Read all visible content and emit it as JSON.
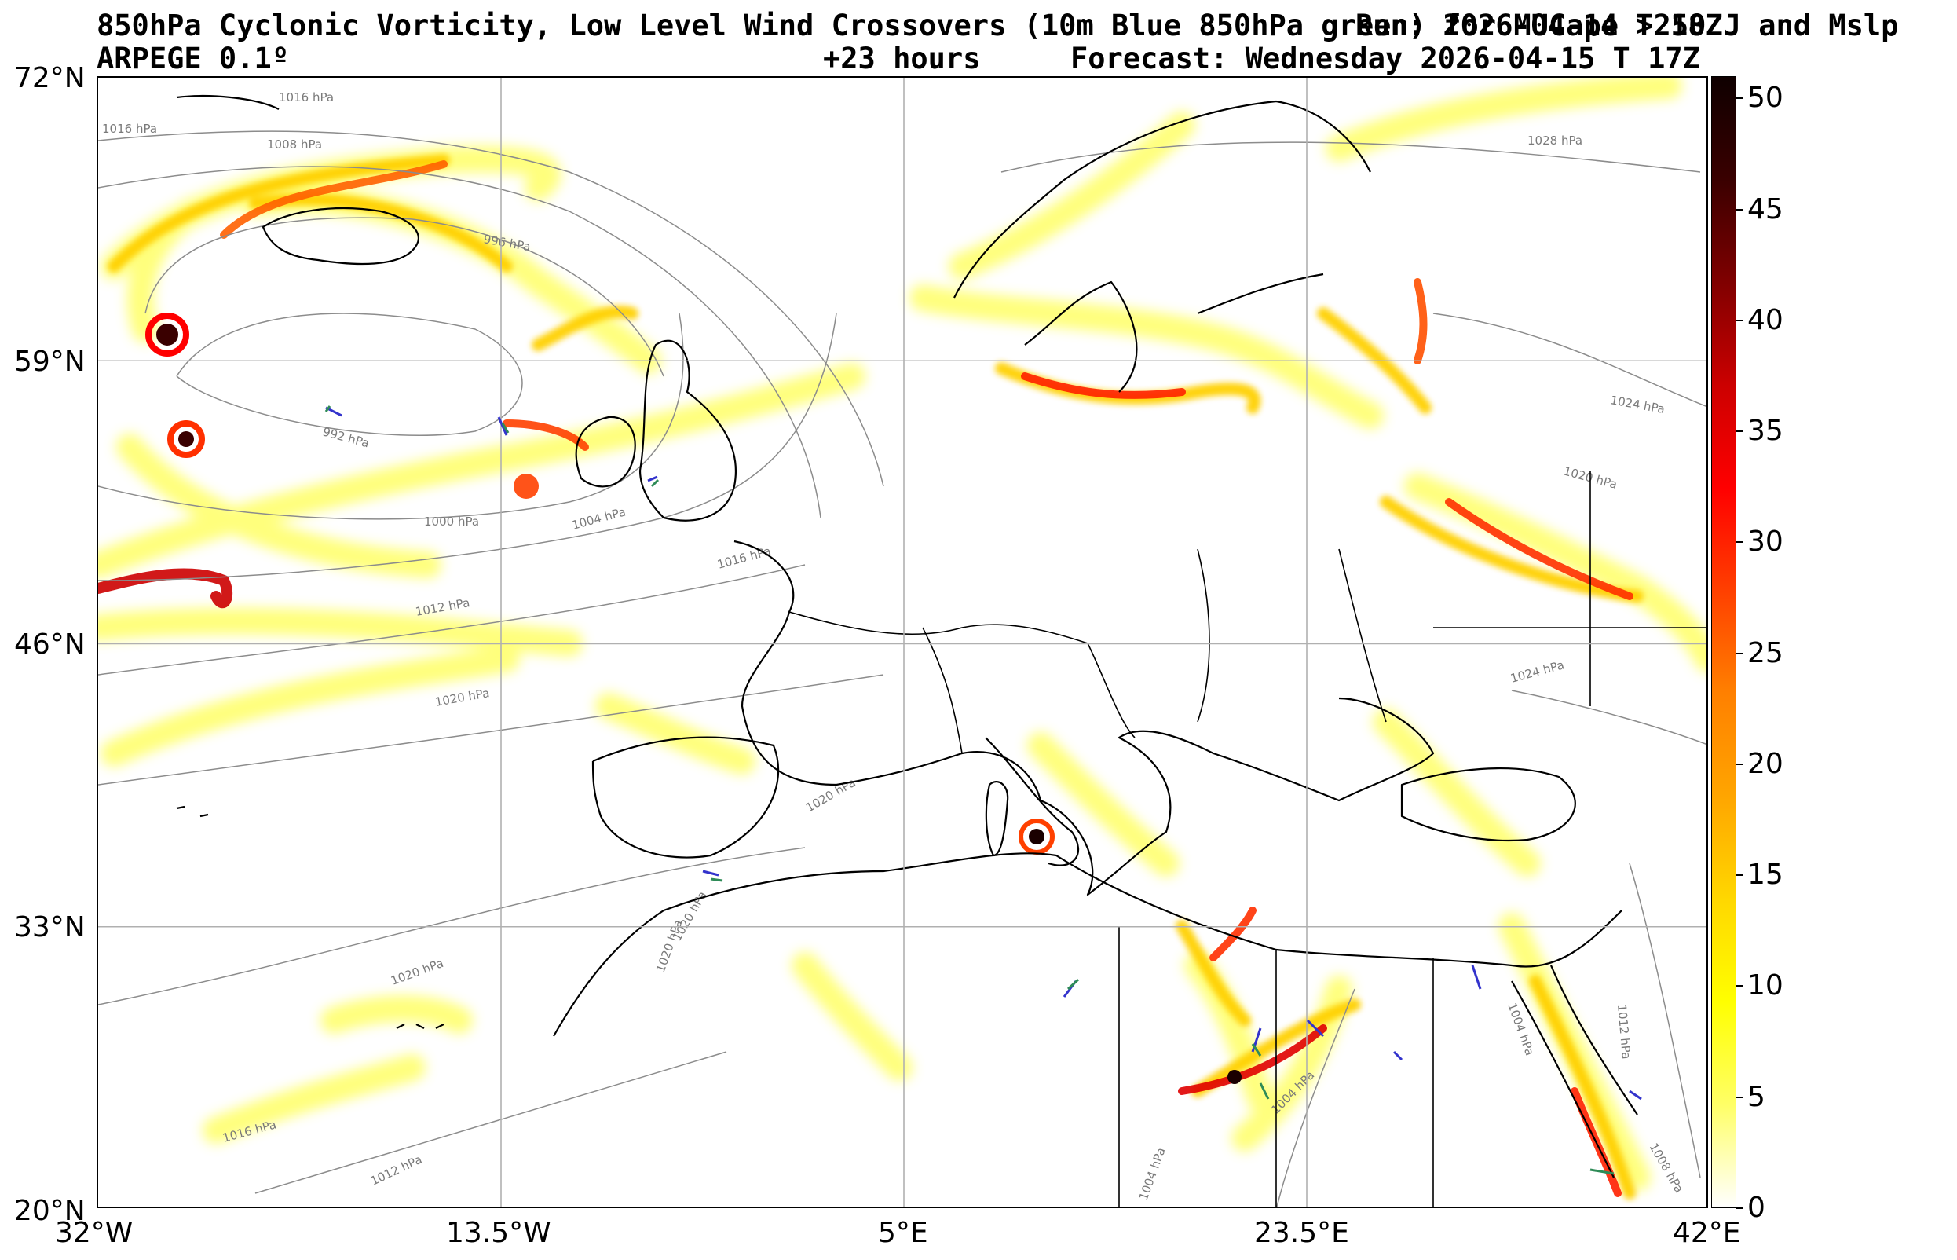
{
  "header": {
    "title_line1_left": "850hPa Cyclonic Vorticity, Low Level Wind Crossovers (10m Blue 850hPa green) for MUCape >250 J and Mslp",
    "title_line1_right": "Run: 2026-04-14 T 18Z",
    "model": "ARPEGE 0.1º",
    "lead_time": "+23 hours",
    "forecast": "Forecast: Wednesday 2026-04-15 T 17Z"
  },
  "map": {
    "projection": "PlateCarree",
    "lon_range": [
      -32,
      42
    ],
    "lat_range": [
      20,
      72
    ],
    "lat_ticks": [
      "72°N",
      "59°N",
      "46°N",
      "33°N",
      "20°N"
    ],
    "lon_ticks": [
      "32°W",
      "13.5°W",
      "5°E",
      "23.5°E",
      "42°E"
    ],
    "gridlines": true,
    "colors": {
      "coast": "#000000",
      "grid": "#b0b0b0",
      "isobar": "#8c8c8c",
      "wind_10m": "#3333cc",
      "wind_850": "#2e8b57"
    }
  },
  "isobar_labels": [
    {
      "text": "1016 hPa"
    },
    {
      "text": "1016 hPa"
    },
    {
      "text": "1008 hPa"
    },
    {
      "text": "996 hPa"
    },
    {
      "text": "992 hPa"
    },
    {
      "text": "1000 hPa"
    },
    {
      "text": "1004 hPa"
    },
    {
      "text": "1016 hPa"
    },
    {
      "text": "1012 hPa"
    },
    {
      "text": "1020 hPa"
    },
    {
      "text": "1028 hPa"
    },
    {
      "text": "1024 hPa"
    },
    {
      "text": "1020 hPa"
    },
    {
      "text": "1024 hPa"
    },
    {
      "text": "1020 hPa"
    },
    {
      "text": "1020 hPa"
    },
    {
      "text": "1020 hPa"
    },
    {
      "text": "1020 hPa"
    },
    {
      "text": "1016 hPa"
    },
    {
      "text": "1012 hPa"
    },
    {
      "text": "1004 hPa"
    },
    {
      "text": "1004 hPa"
    },
    {
      "text": "1004 hPa"
    },
    {
      "text": "1012 hPa"
    },
    {
      "text": "1008 hPa"
    }
  ],
  "colorbar": {
    "min": 0,
    "max": 51,
    "ticks": [
      "0",
      "5",
      "10",
      "15",
      "20",
      "25",
      "30",
      "35",
      "40",
      "45",
      "50"
    ],
    "colors": [
      "#ffffff",
      "#ffff66",
      "#ffff00",
      "#ffd700",
      "#ffa500",
      "#ff8000",
      "#ff4000",
      "#ff0000",
      "#cc0000",
      "#800000",
      "#3a0000",
      "#0f0000"
    ]
  }
}
